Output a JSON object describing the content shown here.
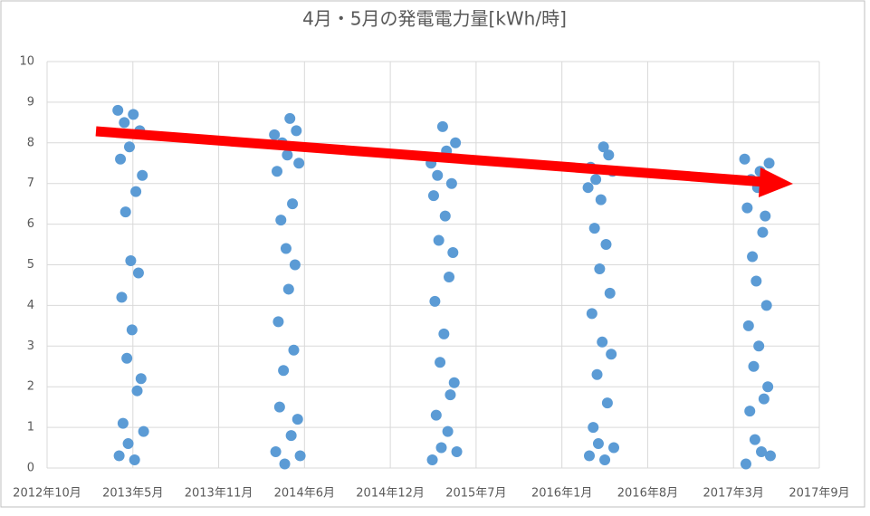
{
  "chart_data": {
    "type": "scatter",
    "title": "4月・5月の発電電力量[kWh/時]",
    "series": [
      {
        "color": "#5b9bd5",
        "x": [
          41365,
          41368,
          41371,
          41374,
          41377,
          41380,
          41383,
          41386,
          41389,
          41392,
          41395,
          41398,
          41401,
          41404,
          41407,
          41410,
          41413,
          41416,
          41419,
          41422,
          41425,
          41730,
          41733,
          41736,
          41739,
          41742,
          41745,
          41748,
          41751,
          41754,
          41757,
          41760,
          41763,
          41766,
          41769,
          41772,
          41775,
          41778,
          41781,
          41784,
          41787,
          41790,
          42095,
          42098,
          42101,
          42104,
          42107,
          42110,
          42113,
          42116,
          42119,
          42122,
          42125,
          42128,
          42131,
          42134,
          42137,
          42140,
          42143,
          42146,
          42149,
          42152,
          42155,
          42461,
          42464,
          42467,
          42470,
          42473,
          42476,
          42479,
          42482,
          42485,
          42488,
          42491,
          42494,
          42497,
          42500,
          42503,
          42506,
          42509,
          42512,
          42515,
          42518,
          42521,
          42826,
          42829,
          42832,
          42835,
          42838,
          42841,
          42844,
          42847,
          42850,
          42853,
          42856,
          42859,
          42862,
          42865,
          42868,
          42871,
          42874,
          42877,
          42880,
          42883,
          42886
        ],
        "values": [
          8.8,
          0.3,
          7.6,
          4.2,
          1.1,
          8.5,
          6.3,
          2.7,
          0.6,
          7.9,
          5.1,
          3.4,
          8.7,
          0.2,
          6.8,
          1.9,
          4.8,
          8.3,
          2.2,
          7.2,
          0.9,
          8.2,
          0.4,
          7.3,
          3.6,
          1.5,
          6.1,
          8.0,
          2.4,
          0.1,
          5.4,
          7.7,
          4.4,
          8.6,
          0.8,
          6.5,
          2.9,
          5.0,
          8.3,
          1.2,
          7.5,
          0.3,
          7.5,
          0.2,
          6.7,
          4.1,
          1.3,
          7.2,
          5.6,
          2.6,
          0.5,
          8.4,
          3.3,
          6.2,
          7.8,
          0.9,
          4.7,
          1.8,
          7.0,
          5.3,
          2.1,
          8.0,
          0.4,
          6.9,
          0.3,
          7.4,
          3.8,
          1.0,
          5.9,
          7.1,
          2.3,
          0.6,
          4.9,
          6.6,
          3.1,
          7.9,
          0.2,
          5.5,
          1.6,
          7.7,
          4.3,
          2.8,
          7.3,
          0.5,
          7.6,
          0.1,
          6.4,
          3.5,
          1.4,
          7.1,
          5.2,
          2.5,
          0.7,
          4.6,
          6.9,
          3.0,
          7.3,
          0.4,
          5.8,
          1.7,
          6.2,
          4.0,
          2.0,
          7.5,
          0.3
        ]
      }
    ],
    "xlim": [
      41200,
      43000
    ],
    "xticks": [
      {
        "value": 41200,
        "label": "2012年10月"
      },
      {
        "value": 41400,
        "label": "2013年5月"
      },
      {
        "value": 41600,
        "label": "2013年11月"
      },
      {
        "value": 41800,
        "label": "2014年6月"
      },
      {
        "value": 42000,
        "label": "2014年12月"
      },
      {
        "value": 42200,
        "label": "2015年7月"
      },
      {
        "value": 42400,
        "label": "2016年1月"
      },
      {
        "value": 42600,
        "label": "2016年8月"
      },
      {
        "value": 42800,
        "label": "2017年3月"
      },
      {
        "value": 43000,
        "label": "2017年9月"
      }
    ],
    "ylim": [
      0,
      10
    ],
    "yticks": [
      0,
      1,
      2,
      3,
      4,
      5,
      6,
      7,
      8,
      9,
      10
    ],
    "grid": true
  }
}
